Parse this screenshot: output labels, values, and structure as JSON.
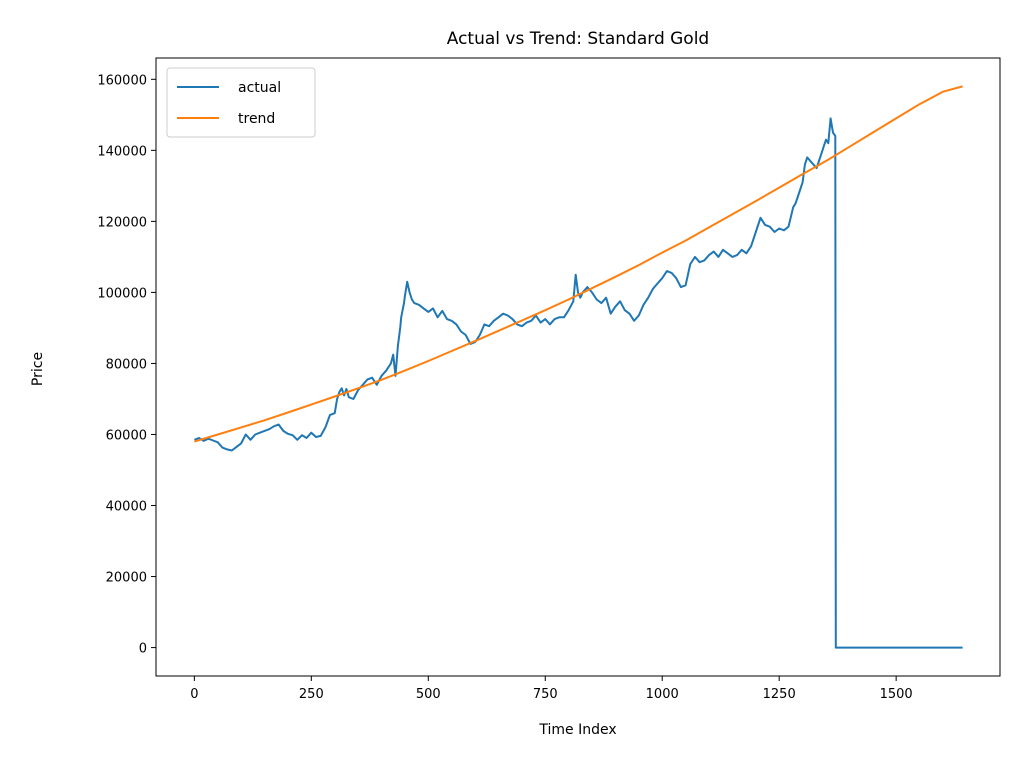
{
  "chart_data": {
    "type": "line",
    "title": "Actual vs Trend: Standard Gold",
    "xlabel": "Time Index",
    "ylabel": "Price",
    "xlim": [
      -82,
      1722
    ],
    "ylim": [
      -8000,
      166000
    ],
    "xticks": [
      0,
      250,
      500,
      750,
      1000,
      1250,
      1500
    ],
    "yticks": [
      0,
      20000,
      40000,
      60000,
      80000,
      100000,
      120000,
      140000,
      160000
    ],
    "grid": false,
    "legend_position": "top-left",
    "series": [
      {
        "name": "actual",
        "color": "#1f77b4",
        "x": [
          0,
          10,
          20,
          30,
          40,
          50,
          60,
          70,
          80,
          90,
          100,
          110,
          120,
          130,
          140,
          150,
          160,
          170,
          180,
          190,
          200,
          210,
          220,
          230,
          240,
          250,
          260,
          270,
          280,
          290,
          300,
          305,
          310,
          315,
          320,
          325,
          330,
          340,
          350,
          360,
          370,
          380,
          390,
          400,
          410,
          420,
          425,
          430,
          432,
          435,
          438,
          440,
          442,
          445,
          448,
          450,
          455,
          460,
          465,
          470,
          480,
          490,
          500,
          510,
          520,
          530,
          540,
          550,
          560,
          570,
          580,
          590,
          600,
          610,
          620,
          630,
          640,
          650,
          660,
          670,
          680,
          690,
          700,
          710,
          720,
          730,
          740,
          750,
          760,
          770,
          780,
          790,
          800,
          810,
          815,
          820,
          825,
          830,
          840,
          850,
          860,
          870,
          880,
          890,
          900,
          910,
          920,
          930,
          940,
          950,
          960,
          970,
          980,
          990,
          1000,
          1010,
          1020,
          1030,
          1040,
          1050,
          1060,
          1070,
          1080,
          1090,
          1100,
          1110,
          1120,
          1130,
          1140,
          1150,
          1160,
          1170,
          1180,
          1190,
          1200,
          1210,
          1220,
          1230,
          1240,
          1250,
          1260,
          1270,
          1280,
          1285,
          1290,
          1300,
          1305,
          1310,
          1320,
          1330,
          1340,
          1345,
          1350,
          1355,
          1360,
          1365,
          1370,
          1371,
          1380,
          1400,
          1450,
          1500,
          1550,
          1600,
          1642
        ],
        "y": [
          58500,
          59000,
          58200,
          58800,
          58300,
          57800,
          56300,
          55800,
          55500,
          56500,
          57500,
          60000,
          58500,
          60000,
          60500,
          61000,
          61500,
          62300,
          62800,
          61000,
          60200,
          59800,
          58500,
          59800,
          59000,
          60500,
          59300,
          59600,
          62000,
          65500,
          66000,
          70000,
          72000,
          73000,
          71000,
          72800,
          70500,
          70000,
          72500,
          74000,
          75500,
          76000,
          74000,
          76500,
          78000,
          80000,
          82500,
          76500,
          80000,
          85000,
          88000,
          90000,
          93000,
          95000,
          97000,
          99000,
          103000,
          100000,
          98000,
          97000,
          96500,
          95500,
          94500,
          95500,
          93000,
          94800,
          92500,
          92000,
          91000,
          89000,
          88000,
          85500,
          86000,
          88000,
          91000,
          90500,
          92000,
          93000,
          94000,
          93500,
          92500,
          91000,
          90500,
          91500,
          92000,
          93500,
          91500,
          92500,
          91000,
          92500,
          93000,
          93000,
          95000,
          97500,
          105000,
          100000,
          98500,
          100000,
          101500,
          100000,
          98000,
          97000,
          98500,
          94000,
          96000,
          97500,
          95000,
          94000,
          92000,
          93500,
          96500,
          98500,
          101000,
          102500,
          104000,
          106000,
          105500,
          104000,
          101500,
          102000,
          108000,
          110000,
          108500,
          109000,
          110500,
          111500,
          110000,
          112000,
          111000,
          110000,
          110500,
          112000,
          111000,
          113000,
          117000,
          121000,
          119000,
          118500,
          117000,
          118000,
          117500,
          118500,
          124000,
          125000,
          127000,
          131000,
          136000,
          138000,
          136500,
          135000,
          139000,
          141000,
          143000,
          142000,
          149000,
          145000,
          144000,
          0,
          0,
          0,
          0,
          0,
          0,
          0,
          0
        ]
      },
      {
        "name": "trend",
        "color": "#ff7f0e",
        "x": [
          0,
          50,
          100,
          150,
          200,
          250,
          300,
          350,
          400,
          450,
          500,
          550,
          600,
          650,
          700,
          750,
          800,
          850,
          900,
          950,
          1000,
          1050,
          1100,
          1150,
          1200,
          1250,
          1300,
          1350,
          1400,
          1450,
          1500,
          1550,
          1600,
          1642
        ],
        "y": [
          58000,
          60000,
          62000,
          64000,
          66200,
          68400,
          70700,
          73000,
          75400,
          78000,
          80700,
          83500,
          86300,
          89200,
          92100,
          95000,
          98000,
          101200,
          104400,
          107700,
          111200,
          114600,
          118300,
          122000,
          125700,
          129500,
          133300,
          137000,
          141000,
          145000,
          149000,
          153000,
          156500,
          158000
        ]
      }
    ]
  }
}
